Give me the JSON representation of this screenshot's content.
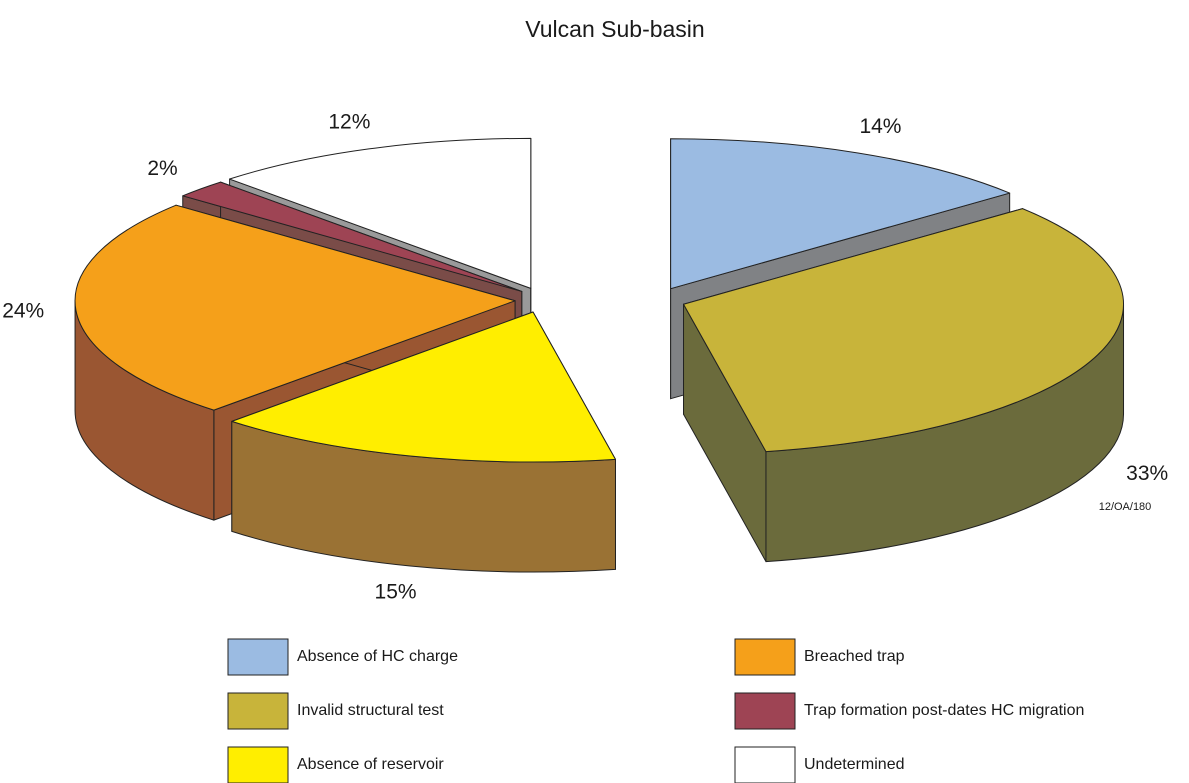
{
  "chart_data": {
    "type": "pie3d",
    "title": "Vulcan Sub-basin",
    "categories": [
      "Absence of HC charge",
      "Invalid structural test",
      "Absence of reservoir",
      "Breached trap",
      "Trap formation post-dates HC migration",
      "Undetermined"
    ],
    "values": [
      14,
      33,
      15,
      24,
      2,
      12
    ],
    "value_labels": [
      "14%",
      "33%",
      "15%",
      "24%",
      "2%",
      "12%"
    ],
    "colors": [
      "#9bbbe2",
      "#c8b43a",
      "#ffee00",
      "#f5a01a",
      "#9e4454",
      "#ffffff"
    ],
    "side_colors": [
      "#808285",
      "#6b6b3c",
      "#9a7234",
      "#9a5632",
      "#7a4c48",
      "#9a9a9a"
    ],
    "annotation": "12/OA/180"
  }
}
